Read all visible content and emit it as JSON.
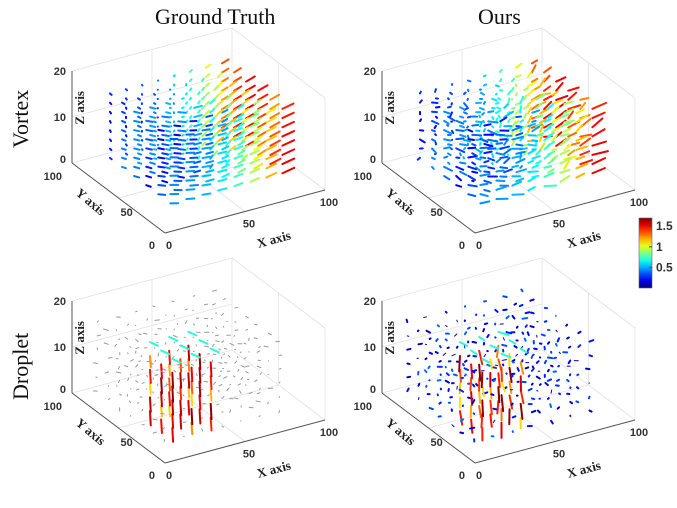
{
  "columns": [
    "Ground Truth",
    "Ours"
  ],
  "rows": [
    "Vortex",
    "Droplet"
  ],
  "colorbar": {
    "colormap": "jet",
    "ticks": [
      "1.5",
      "1",
      "0.5"
    ],
    "tick_values": [
      1.5,
      1.0,
      0.5
    ],
    "range": [
      0,
      1.7
    ]
  },
  "chart_data": [
    {
      "type": "quiver3d",
      "row": "Vortex",
      "column": "Ground Truth",
      "xlabel": "X axis",
      "ylabel": "Y axis",
      "zlabel": "Z axis",
      "xlim": [
        0,
        100
      ],
      "ylim": [
        0,
        100
      ],
      "zlim": [
        0,
        20
      ],
      "xticks": [
        "0",
        "50",
        "100"
      ],
      "yticks": [
        "0",
        "50",
        "100"
      ],
      "zticks": [
        "0",
        "10",
        "20"
      ],
      "grid": true
    },
    {
      "type": "quiver3d",
      "row": "Vortex",
      "column": "Ours",
      "xlabel": "X axis",
      "ylabel": "Y axis",
      "zlabel": "Z axis",
      "xlim": [
        0,
        100
      ],
      "ylim": [
        0,
        100
      ],
      "zlim": [
        0,
        20
      ],
      "xticks": [
        "0",
        "50",
        "100"
      ],
      "yticks": [
        "0",
        "50",
        "100"
      ],
      "zticks": [
        "0",
        "10",
        "20"
      ],
      "grid": true
    },
    {
      "type": "quiver3d",
      "row": "Droplet",
      "column": "Ground Truth",
      "xlabel": "X axis",
      "ylabel": "Y axis",
      "zlabel": "Z axis",
      "xlim": [
        0,
        100
      ],
      "ylim": [
        0,
        100
      ],
      "zlim": [
        0,
        20
      ],
      "xticks": [
        "0",
        "50",
        "100"
      ],
      "yticks": [
        "0",
        "50",
        "100"
      ],
      "zticks": [
        "0",
        "10",
        "20"
      ],
      "grid": true
    },
    {
      "type": "quiver3d",
      "row": "Droplet",
      "column": "Ours",
      "xlabel": "X axis",
      "ylabel": "Y axis",
      "zlabel": "Z axis",
      "xlim": [
        0,
        100
      ],
      "ylim": [
        0,
        100
      ],
      "zlim": [
        0,
        20
      ],
      "xticks": [
        "0",
        "50",
        "100"
      ],
      "yticks": [
        "0",
        "50",
        "100"
      ],
      "zticks": [
        "0",
        "10",
        "20"
      ],
      "grid": true
    }
  ]
}
